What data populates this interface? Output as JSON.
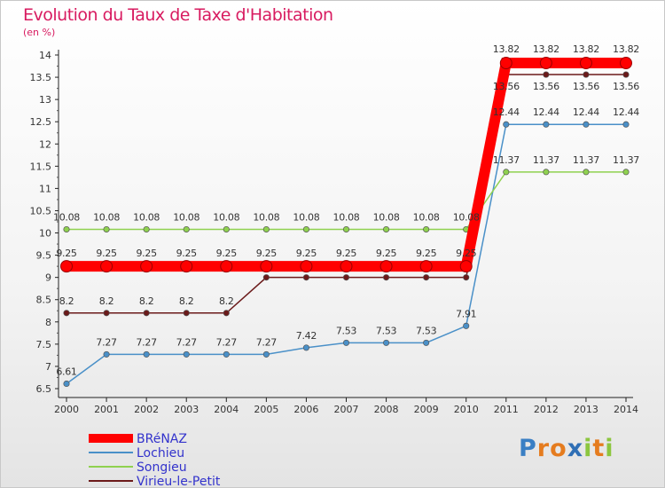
{
  "header": {
    "title": "Evolution du Taux de Taxe d'Habitation",
    "unit": "(en %)"
  },
  "brand": {
    "logo_text": "Proxiti"
  },
  "chart_data": {
    "type": "line",
    "title": "Evolution du Taux de Taxe d'Habitation",
    "ylabel": "(en %)",
    "xlabel": "",
    "x": [
      "2000",
      "2001",
      "2002",
      "2003",
      "2004",
      "2005",
      "2006",
      "2007",
      "2008",
      "2009",
      "2010",
      "2011",
      "2012",
      "2013",
      "2014"
    ],
    "ylim": [
      6.5,
      14
    ],
    "yticks": [
      6.5,
      7,
      7.5,
      8,
      8.5,
      9,
      9.5,
      10,
      10.5,
      11,
      11.5,
      12,
      12.5,
      13,
      13.5,
      14
    ],
    "ytick_labels": [
      "6.5",
      "7",
      "7.5",
      "8",
      "8.5",
      "9",
      "9.5",
      "10",
      "10.5",
      "11",
      "11.5",
      "12",
      "12.5",
      "13",
      "13.5",
      "14"
    ],
    "legend_position": "bottom-left",
    "series": [
      {
        "name": "Lochieu",
        "color": "#4a90c8",
        "values": [
          6.61,
          7.27,
          7.27,
          7.27,
          7.27,
          7.27,
          7.42,
          7.53,
          7.53,
          7.53,
          7.91,
          12.44,
          12.44,
          12.44,
          12.44
        ],
        "labels": [
          "6.61",
          "7.27",
          "7.27",
          "7.27",
          "7.27",
          "7.27",
          "7.42",
          "7.53",
          "7.53",
          "7.53",
          "7.91",
          "12.44",
          "12.44",
          "12.44",
          "12.44"
        ]
      },
      {
        "name": "Songieu",
        "color": "#8fd14f",
        "values": [
          10.08,
          10.08,
          10.08,
          10.08,
          10.08,
          10.08,
          10.08,
          10.08,
          10.08,
          10.08,
          10.08,
          11.37,
          11.37,
          11.37,
          11.37
        ],
        "labels": [
          "10.08",
          "10.08",
          "10.08",
          "10.08",
          "10.08",
          "10.08",
          "10.08",
          "10.08",
          "10.08",
          "10.08",
          "10.08",
          "11.37",
          "11.37",
          "11.37",
          "11.37"
        ]
      },
      {
        "name": "Virieu-le-Petit",
        "color": "#6b1a1a",
        "values": [
          8.2,
          8.2,
          8.2,
          8.2,
          8.2,
          9,
          9,
          9,
          9,
          9,
          9,
          13.56,
          13.56,
          13.56,
          13.56
        ],
        "labels": [
          "8.2",
          "8.2",
          "8.2",
          "8.2",
          "8.2",
          "",
          "",
          "",
          "",
          "",
          "",
          "13.56",
          "13.56",
          "13.56",
          "13.56"
        ]
      },
      {
        "name": "BRéNAZ",
        "color": "#ff0000",
        "values": [
          9.25,
          9.25,
          9.25,
          9.25,
          9.25,
          9.25,
          9.25,
          9.25,
          9.25,
          9.25,
          9.25,
          13.82,
          13.82,
          13.82,
          13.82
        ],
        "labels": [
          "9.25",
          "9.25",
          "9.25",
          "9.25",
          "9.25",
          "9.25",
          "9.25",
          "9.25",
          "9.25",
          "9.25",
          "9.25",
          "13.82",
          "13.82",
          "13.82",
          "13.82"
        ]
      }
    ],
    "legend_order": [
      "BRéNAZ",
      "Lochieu",
      "Songieu",
      "Virieu-le-Petit"
    ]
  }
}
